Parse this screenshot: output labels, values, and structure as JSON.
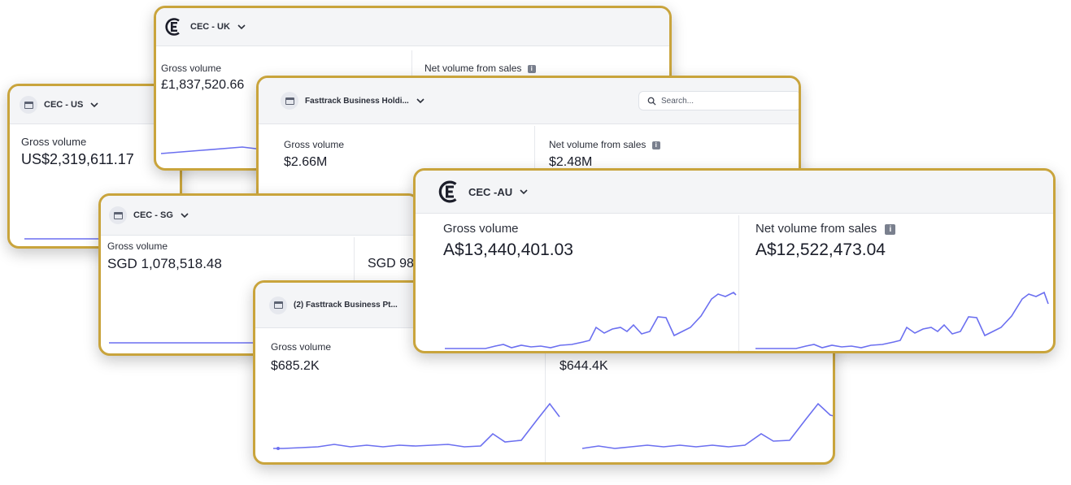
{
  "colors": {
    "frame": "#c9a43c",
    "line": "#6b6ff0",
    "header_bg": "#f4f5f7"
  },
  "cards": {
    "us": {
      "account": "CEC - US",
      "gross_label": "Gross volume",
      "gross_value": "US$2,319,611.17"
    },
    "uk": {
      "account": "CEC - UK",
      "gross_label": "Gross volume",
      "gross_value": "£1,837,520.66",
      "net_label": "Net volume from sales"
    },
    "sg": {
      "account": "CEC - SG",
      "gross_label": "Gross volume",
      "gross_value": "SGD 1,078,518.48",
      "net_value_partial": "SGD 98"
    },
    "fasttrack_holdings": {
      "account": "Fasttrack Business Holdi...",
      "search_placeholder": "Search...",
      "gross_label": "Gross volume",
      "gross_value": "$2.66M",
      "net_label": "Net volume from sales",
      "net_value": "$2.48M"
    },
    "fasttrack_pt": {
      "account": "(2) Fasttrack Business Pt...",
      "gross_label": "Gross volume",
      "gross_value": "$685.2K",
      "net_value": "$644.4K"
    },
    "au": {
      "account": "CEC -AU",
      "gross_label": "Gross volume",
      "gross_value": "A$13,440,401.03",
      "net_label": "Net volume from sales",
      "net_value": "A$12,522,473.04"
    }
  },
  "icons": {
    "logo": "cec-logo-icon",
    "store": "store-icon",
    "chevron": "chevron-down-icon",
    "info": "info-icon",
    "search": "search-icon"
  }
}
